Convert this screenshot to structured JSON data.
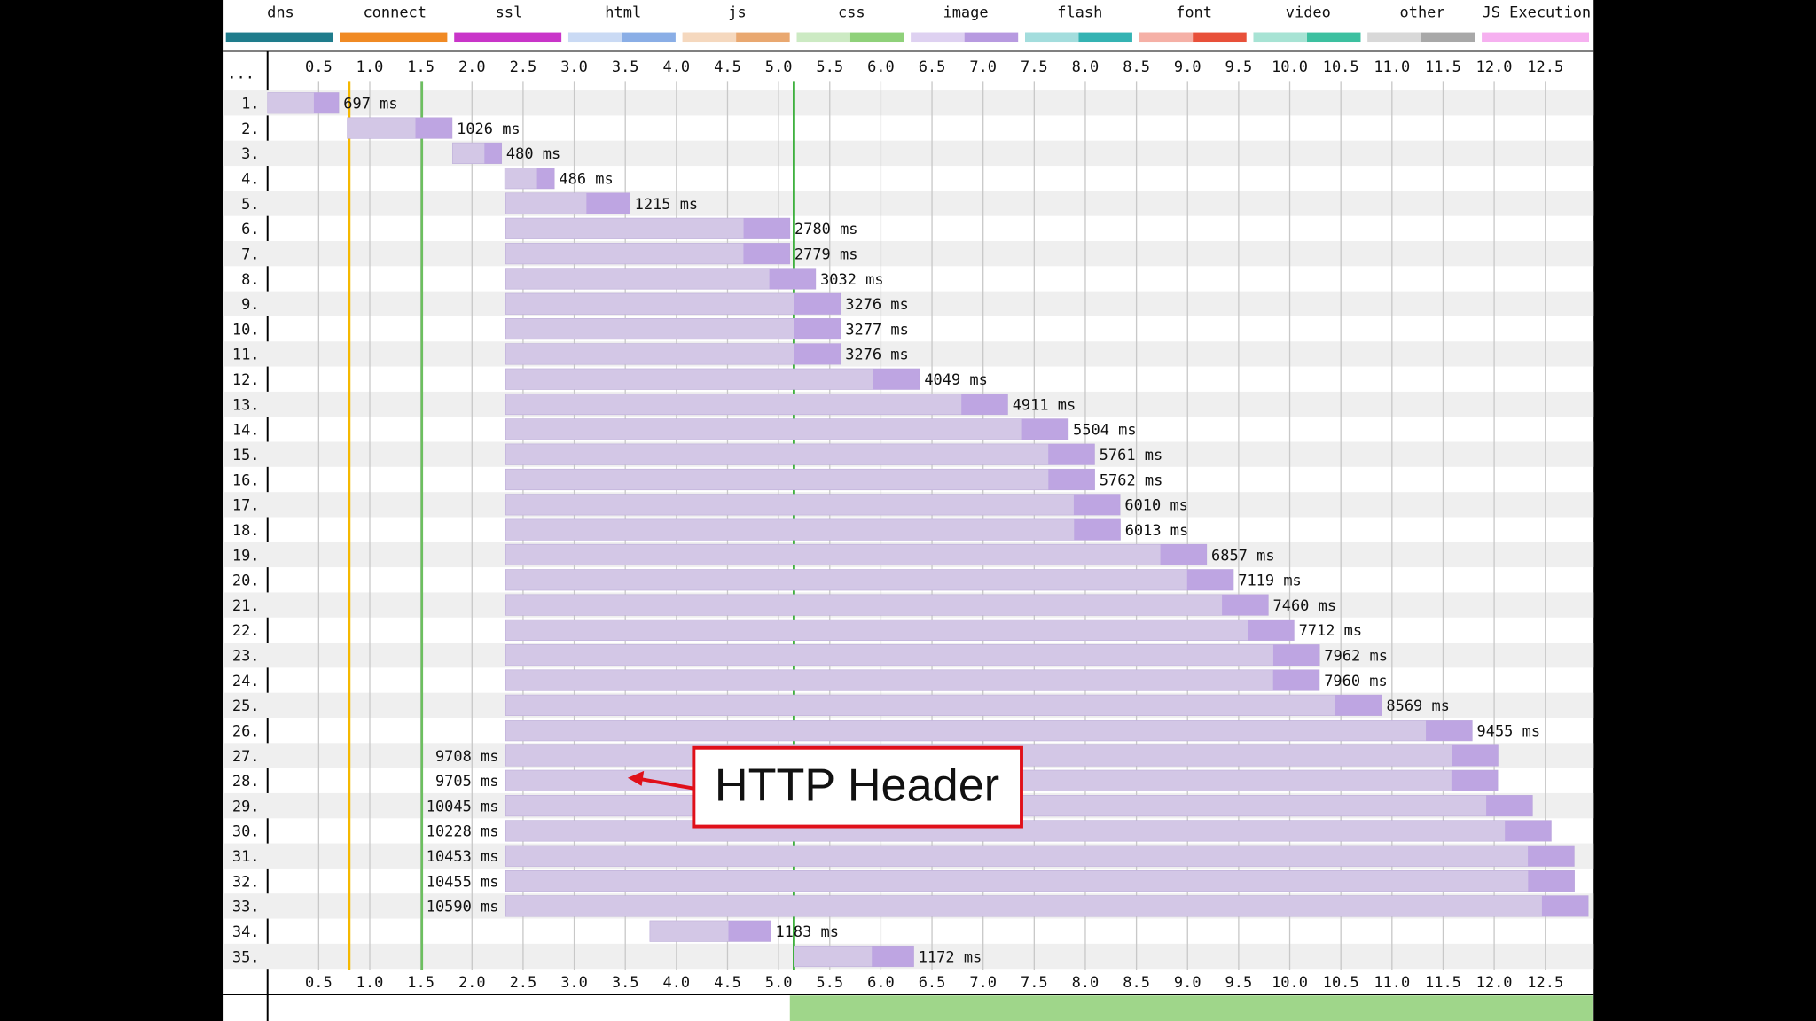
{
  "chart_data": {
    "type": "waterfall",
    "row_header": "...",
    "legend": [
      {
        "name": "dns",
        "color": "#1f7c8c"
      },
      {
        "name": "connect",
        "color": "#f08a24"
      },
      {
        "name": "ssl",
        "color": "#c935c9"
      },
      {
        "name": "html",
        "color": "#8aaee6"
      },
      {
        "name": "js",
        "color": "#e9a870"
      },
      {
        "name": "css",
        "color": "#8fd17a"
      },
      {
        "name": "image",
        "color": "#b79ae0"
      },
      {
        "name": "flash",
        "color": "#34b3b3"
      },
      {
        "name": "font",
        "color": "#e8503a"
      },
      {
        "name": "video",
        "color": "#3cc0a0"
      },
      {
        "name": "other",
        "color": "#a8a8a8"
      },
      {
        "name": "JS Execution",
        "color": "#f6b0f0"
      }
    ],
    "categories": [
      "1.",
      "2.",
      "3.",
      "4.",
      "5.",
      "6.",
      "7.",
      "8.",
      "9.",
      "10.",
      "11.",
      "12.",
      "13.",
      "14.",
      "15.",
      "16.",
      "17.",
      "18.",
      "19.",
      "20.",
      "21.",
      "22.",
      "23.",
      "24.",
      "25.",
      "26.",
      "27.",
      "28.",
      "29.",
      "30.",
      "31.",
      "32.",
      "33.",
      "34.",
      "35."
    ],
    "starts": [
      0,
      0.78,
      1.81,
      2.32,
      2.33,
      2.33,
      2.33,
      2.33,
      2.33,
      2.33,
      2.33,
      2.33,
      2.33,
      2.33,
      2.33,
      2.33,
      2.33,
      2.33,
      2.33,
      2.33,
      2.33,
      2.33,
      2.33,
      2.33,
      2.33,
      2.33,
      2.33,
      2.33,
      2.33,
      2.33,
      2.33,
      2.33,
      2.33,
      3.74,
      5.15
    ],
    "values": [
      0.697,
      1.026,
      0.48,
      0.486,
      1.215,
      2.78,
      2.779,
      3.032,
      3.276,
      3.277,
      3.276,
      4.049,
      4.911,
      5.504,
      5.761,
      5.762,
      6.01,
      6.013,
      6.857,
      7.119,
      7.46,
      7.712,
      7.962,
      7.96,
      8.569,
      9.455,
      9.708,
      9.705,
      10.045,
      10.228,
      10.453,
      10.455,
      10.59,
      1.183,
      1.172
    ],
    "value_labels": [
      "697 ms",
      "1026 ms",
      "480 ms",
      "486 ms",
      "1215 ms",
      "2780 ms",
      "2779 ms",
      "3032 ms",
      "3276 ms",
      "3277 ms",
      "3276 ms",
      "4049 ms",
      "4911 ms",
      "5504 ms",
      "5761 ms",
      "5762 ms",
      "6010 ms",
      "6013 ms",
      "6857 ms",
      "7119 ms",
      "7460 ms",
      "7712 ms",
      "7962 ms",
      "7960 ms",
      "8569 ms",
      "9455 ms",
      "9708 ms",
      "9705 ms",
      "10045 ms",
      "10228 ms",
      "10453 ms",
      "10455 ms",
      "10590 ms",
      "1183 ms",
      "1172 ms"
    ],
    "color": "#d3c7e6",
    "xlim": [
      0,
      12.95
    ],
    "xticks": [
      0.5,
      {
        "value": 1,
        "label": "1.0"
      },
      1.5,
      {
        "value": 2,
        "label": "2.0"
      },
      2.5,
      {
        "value": 3,
        "label": "3.0"
      },
      3.5,
      {
        "value": 4,
        "label": "4.0"
      },
      4.5,
      {
        "value": 5,
        "label": "5.0"
      },
      5.5,
      {
        "value": 6,
        "label": "6.0"
      },
      6.5,
      {
        "value": 7,
        "label": "7.0"
      },
      7.5,
      {
        "value": 8,
        "label": "8.0"
      },
      8.5,
      {
        "value": 9,
        "label": "9.0"
      },
      9.5,
      {
        "value": 10,
        "label": "10.0"
      },
      10.5,
      {
        "value": 11,
        "label": "11.0"
      },
      11.5,
      {
        "value": 12,
        "label": "12.0"
      },
      12.5
    ],
    "grid": true,
    "markers": [
      {
        "value": 0.8,
        "color": "#f5b800"
      },
      {
        "value": 1.51,
        "color": "#6cbf5f"
      },
      {
        "value": 5.15,
        "color": "#28a828"
      }
    ],
    "annotation": "HTTP Header"
  }
}
